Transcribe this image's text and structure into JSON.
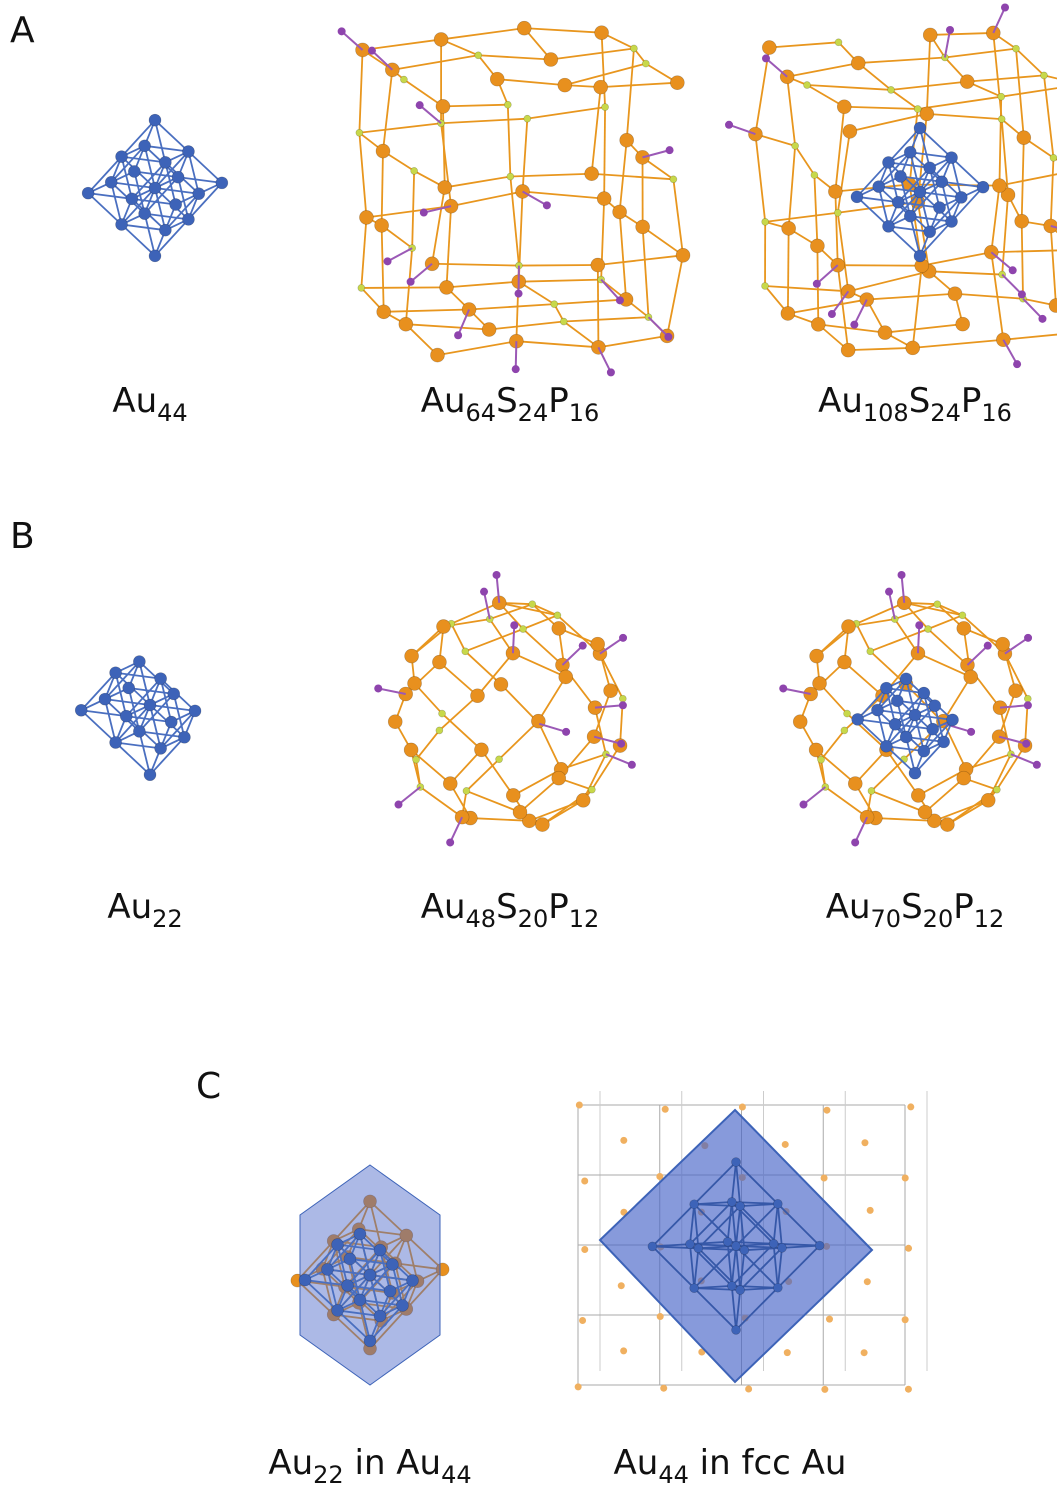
{
  "panels": [
    {
      "label": "A",
      "captions": [
        [
          [
            "Au",
            "44"
          ]
        ],
        [
          [
            "Au",
            "64"
          ],
          [
            "S",
            "24"
          ],
          [
            "P",
            "16"
          ]
        ],
        [
          [
            "Au",
            "108"
          ],
          [
            "S",
            "24"
          ],
          [
            "P",
            "16"
          ]
        ]
      ]
    },
    {
      "label": "B",
      "captions": [
        [
          [
            "Au",
            "22"
          ]
        ],
        [
          [
            "Au",
            "48"
          ],
          [
            "S",
            "20"
          ],
          [
            "P",
            "12"
          ]
        ],
        [
          [
            "Au",
            "70"
          ],
          [
            "S",
            "20"
          ],
          [
            "P",
            "12"
          ]
        ]
      ]
    },
    {
      "label": "C",
      "captions": [
        [
          [
            "Au",
            "22"
          ],
          [
            " in Au",
            "44"
          ]
        ],
        [
          [
            "Au",
            "44"
          ],
          [
            " in fcc Au"
          ]
        ]
      ]
    }
  ]
}
